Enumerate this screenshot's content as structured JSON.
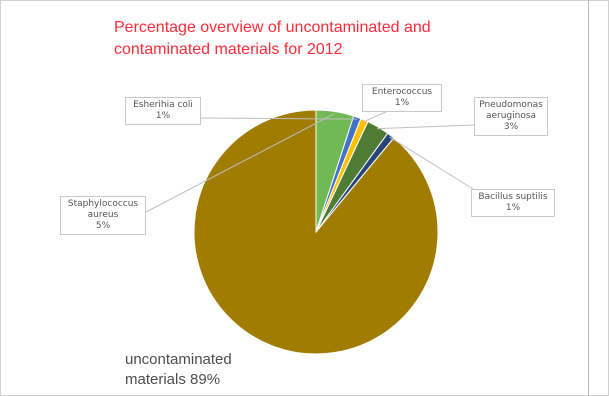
{
  "chart_data": {
    "type": "pie",
    "title_lines": [
      "Percentage overview of uncontaminated and",
      "contaminated materials for 2012"
    ],
    "slices": [
      {
        "label_lines": [
          "Staphylococcus",
          "aureus"
        ],
        "percent_label": "5%",
        "value": 5,
        "color": "#72b955"
      },
      {
        "label_lines": [
          "Esherihia coli"
        ],
        "percent_label": "1%",
        "value": 1,
        "color": "#4472c4"
      },
      {
        "label_lines": [
          "Enterococcus"
        ],
        "percent_label": "1%",
        "value": 1,
        "color": "#ffc000"
      },
      {
        "label_lines": [
          "Pneudomonas",
          "aeruginosa"
        ],
        "percent_label": "3%",
        "value": 3,
        "color": "#4e7b35"
      },
      {
        "label_lines": [
          "Bacillus suptilis"
        ],
        "percent_label": "1%",
        "value": 1,
        "color": "#264478"
      },
      {
        "label_lines": [
          "uncontaminated",
          "materials 89%"
        ],
        "percent_label": "",
        "value": 89,
        "color": "#a07d00"
      }
    ],
    "legend": "none",
    "data_labels": "callouts"
  },
  "colors": {
    "title": "#ff2b3a",
    "background": "#ffffff",
    "slice_border": "#ffffff",
    "leader_line": "#bfbfbf"
  }
}
